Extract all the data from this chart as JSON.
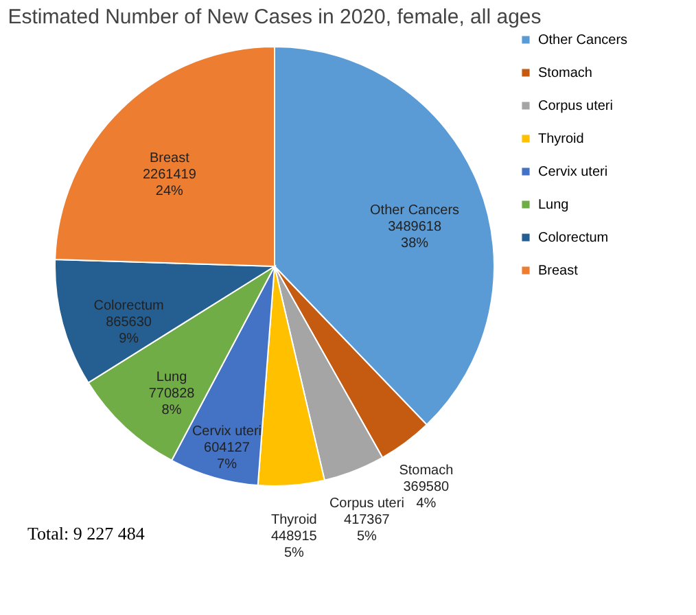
{
  "chart_data": {
    "type": "pie",
    "title": "Estimated Number of New Cases in 2020, female, all ages",
    "categories": [
      "Other Cancers",
      "Stomach",
      "Corpus uteri",
      "Thyroid",
      "Cervix uteri",
      "Lung",
      "Colorectum",
      "Breast"
    ],
    "values": [
      3489618,
      369580,
      417367,
      448915,
      604127,
      770828,
      865630,
      2261419
    ],
    "colors": [
      "#5b9bd5",
      "#c55a11",
      "#a5a5a5",
      "#ffc000",
      "#4472c4",
      "#70ad47",
      "#255e91",
      "#ed7d31"
    ],
    "value_labels": [
      "3489618\n38%",
      "369580\n4%",
      "417367\n5%",
      "448915\n5%",
      "604127\n7%",
      "770828\n8%",
      "865630\n9%",
      "2261419\n24%"
    ],
    "legend": "right",
    "annotations": [
      "Total:  9 227 484"
    ]
  }
}
